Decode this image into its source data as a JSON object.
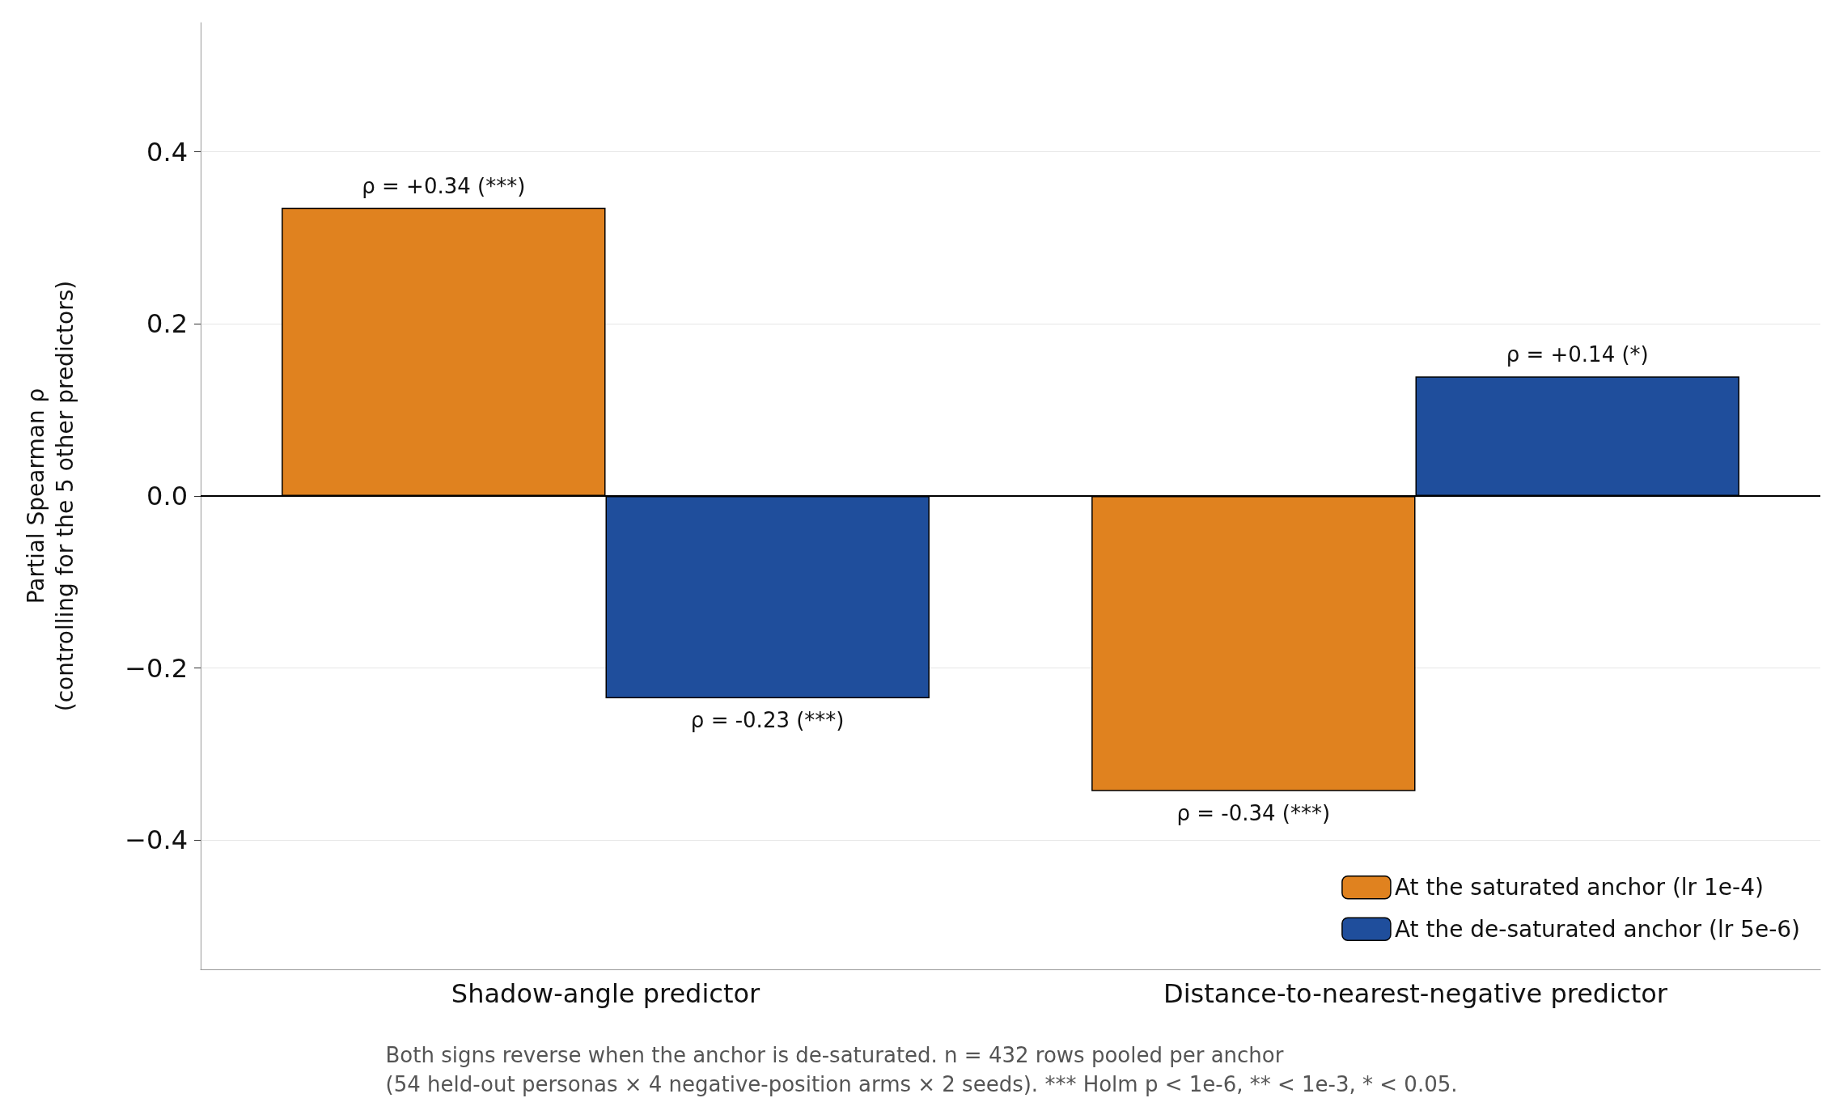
{
  "chart_data": {
    "type": "bar",
    "ylabel": "Partial Spearman ρ\n(controlling for the 5 other predictors)",
    "categories": [
      "Shadow-angle predictor",
      "Distance-to-nearest-negative predictor"
    ],
    "series": [
      {
        "name": "At the saturated anchor (lr 1e-4)",
        "color": "#e0821f",
        "values": [
          0.335,
          -0.343
        ],
        "value_labels": [
          "ρ = +0.34 (***)",
          "ρ = -0.34 (***)"
        ]
      },
      {
        "name": "At the de-saturated anchor (lr 5e-6)",
        "color": "#1f4e9c",
        "values": [
          -0.235,
          0.139
        ],
        "value_labels": [
          "ρ = -0.23 (***)",
          "ρ = +0.14 (*)"
        ]
      }
    ],
    "ylim": [
      -0.55,
      0.55
    ],
    "yticks": [
      {
        "value": -0.4,
        "label": "−0.4"
      },
      {
        "value": -0.2,
        "label": "−0.2"
      },
      {
        "value": 0,
        "label": "0.0"
      },
      {
        "value": 0.2,
        "label": "0.2"
      },
      {
        "value": 0.4,
        "label": "0.4"
      }
    ],
    "ref_lines": [
      {
        "axis": "y",
        "value": 0,
        "color": "#000000"
      }
    ],
    "annotations": [
      "Both signs reverse when the anchor is de-saturated. n = 432 rows pooled per anchor\n(54 held-out personas × 4 negative-position arms × 2 seeds). *** Holm p < 1e-6, ** < 1e-3, * < 0.05."
    ],
    "grid": "y",
    "legend": "bottom right"
  }
}
